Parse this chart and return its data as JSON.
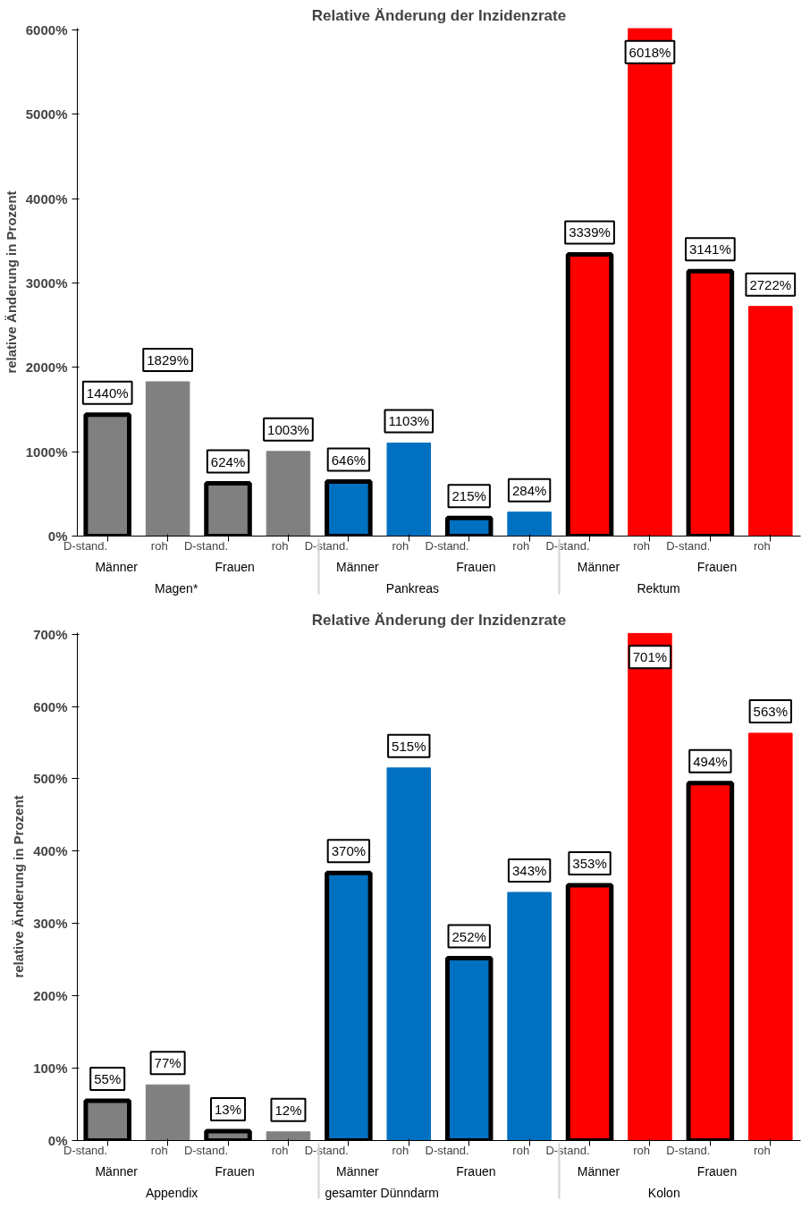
{
  "chart_data": [
    {
      "type": "bar",
      "title": "Relative Änderung der Inzidenzrate",
      "ylabel": "relative Änderung in Prozent",
      "categories": [
        "D-stand.",
        "roh",
        "D-stand.",
        "roh",
        "D-stand.",
        "roh",
        "D-stand.",
        "roh",
        "D-stand.",
        "roh",
        "D-stand.",
        "roh"
      ],
      "annotations": [
        "Männer",
        "Frauen",
        "Männer",
        "Frauen",
        "Männer",
        "Frauen",
        "Magen*",
        "Pankreas",
        "Rektum"
      ],
      "series": [
        {
          "values": [
            1440,
            null,
            624,
            null,
            646,
            null,
            215,
            null,
            3339,
            null,
            3141,
            null
          ],
          "colors": [
            "#808080",
            null,
            "#808080",
            null,
            "#0070c0",
            null,
            "#0070c0",
            null,
            "#ff0000",
            null,
            "#ff0000",
            null
          ],
          "value_labels": [
            "1440%",
            null,
            "624%",
            null,
            "646%",
            null,
            "215%",
            null,
            "3339%",
            null,
            "3141%",
            null
          ]
        },
        {
          "values": [
            null,
            1829,
            null,
            1003,
            null,
            1103,
            null,
            284,
            null,
            6018,
            null,
            2722
          ],
          "colors": [
            null,
            "#808080",
            null,
            "#808080",
            null,
            "#0070c0",
            null,
            "#0070c0",
            null,
            "#ff0000",
            null,
            "#ff0000"
          ],
          "value_labels": [
            null,
            "1829%",
            null,
            "1003%",
            null,
            "1103%",
            null,
            "284%",
            null,
            "6018%",
            null,
            "2722%"
          ]
        }
      ],
      "ylim": [
        0,
        6020
      ],
      "yticks": [
        {
          "value": 0,
          "label": "0%"
        },
        {
          "value": 1000,
          "label": "1000%"
        },
        {
          "value": 2000,
          "label": "2000%"
        },
        {
          "value": 3000,
          "label": "3000%"
        },
        {
          "value": 4000,
          "label": "4000%"
        },
        {
          "value": 5000,
          "label": "5000%"
        },
        {
          "value": 6000,
          "label": "6000%"
        }
      ],
      "grid": false
    },
    {
      "type": "bar",
      "title": "Relative Änderung der Inzidenzrate",
      "ylabel": "relative Änderung in Prozent",
      "categories": [
        "D-stand.",
        "roh",
        "D-stand.",
        "roh",
        "D-stand.",
        "roh",
        "D-stand.",
        "roh",
        "D-stand.",
        "roh",
        "D-stand.",
        "roh"
      ],
      "annotations": [
        "Männer",
        "Frauen",
        "Männer",
        "Frauen",
        "Männer",
        "Frauen",
        "Appendix",
        "gesamter Dünndarm",
        "Kolon"
      ],
      "series": [
        {
          "values": [
            55,
            null,
            13,
            null,
            370,
            null,
            252,
            null,
            353,
            null,
            494,
            null
          ],
          "colors": [
            "#808080",
            null,
            "#808080",
            null,
            "#0070c0",
            null,
            "#0070c0",
            null,
            "#ff0000",
            null,
            "#ff0000",
            null
          ],
          "value_labels": [
            "55%",
            null,
            "13%",
            null,
            "370%",
            null,
            "252%",
            null,
            "353%",
            null,
            "494%",
            null
          ]
        },
        {
          "values": [
            null,
            77,
            null,
            12,
            null,
            515,
            null,
            343,
            null,
            701,
            null,
            563
          ],
          "colors": [
            null,
            "#808080",
            null,
            "#808080",
            null,
            "#0070c0",
            null,
            "#0070c0",
            null,
            "#ff0000",
            null,
            "#ff0000"
          ],
          "value_labels": [
            null,
            "77%",
            null,
            "12%",
            null,
            "515%",
            null,
            "343%",
            null,
            "701%",
            null,
            "563%"
          ]
        }
      ],
      "ylim": [
        0,
        702
      ],
      "yticks": [
        {
          "value": 0,
          "label": "0%"
        },
        {
          "value": 100,
          "label": "100%"
        },
        {
          "value": 200,
          "label": "200%"
        },
        {
          "value": 300,
          "label": "300%"
        },
        {
          "value": 400,
          "label": "400%"
        },
        {
          "value": 500,
          "label": "500%"
        },
        {
          "value": 600,
          "label": "600%"
        },
        {
          "value": 700,
          "label": "700%"
        }
      ],
      "grid": false
    }
  ]
}
